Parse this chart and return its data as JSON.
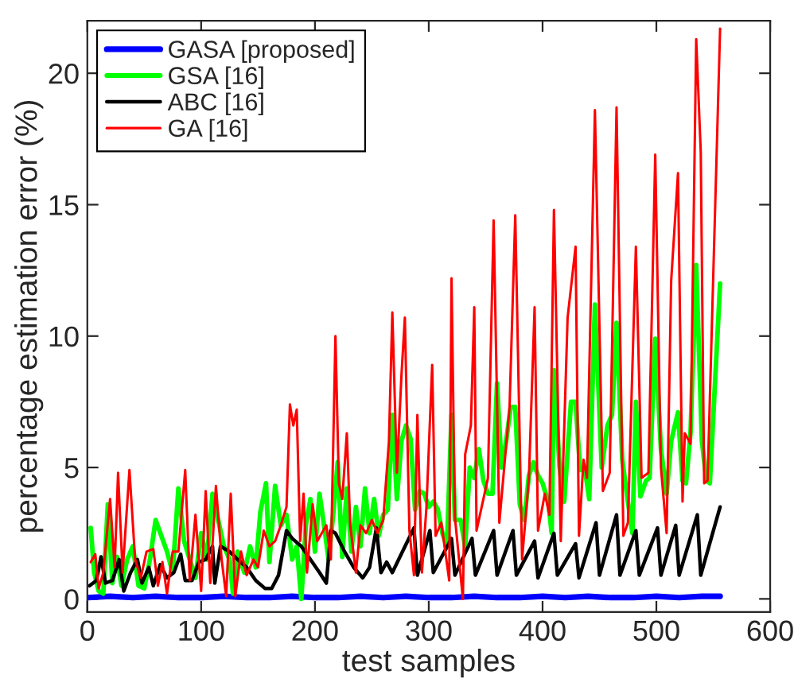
{
  "chart_data": {
    "type": "line",
    "xlabel": "test samples",
    "ylabel": "percentage estimation error (%)",
    "xlim": [
      0,
      600
    ],
    "xticks": [
      0,
      100,
      200,
      300,
      400,
      500,
      600
    ],
    "ylim": [
      -0.5,
      22
    ],
    "yticks": [
      0,
      5,
      10,
      15,
      20
    ],
    "grid": false,
    "legend": "top left",
    "marker": "none",
    "line_style": "solid",
    "series": [
      {
        "name": "GASA [proposed]",
        "color": "#0000ff",
        "x": [
          1,
          20,
          40,
          60,
          80,
          100,
          120,
          140,
          160,
          180,
          200,
          220,
          240,
          260,
          280,
          300,
          320,
          340,
          360,
          380,
          400,
          420,
          440,
          460,
          480,
          500,
          520,
          540,
          556
        ],
        "values": [
          0.05,
          0.1,
          0.05,
          0.1,
          0.05,
          0.05,
          0.1,
          0.05,
          0.05,
          0.1,
          0.05,
          0.05,
          0.1,
          0.05,
          0.1,
          0.05,
          0.05,
          0.1,
          0.05,
          0.05,
          0.1,
          0.05,
          0.1,
          0.05,
          0.05,
          0.1,
          0.05,
          0.1,
          0.1
        ]
      },
      {
        "name": "GSA [16]",
        "color": "#00ff00",
        "x": [
          3,
          6,
          10,
          14,
          18,
          22,
          26,
          30,
          35,
          40,
          45,
          50,
          55,
          60,
          65,
          70,
          75,
          80,
          85,
          90,
          95,
          100,
          105,
          110,
          115,
          120,
          125,
          128,
          132,
          138,
          143,
          148,
          152,
          157,
          160,
          165,
          170,
          175,
          180,
          184,
          188,
          192,
          196,
          200,
          204,
          208,
          212,
          216,
          220,
          224,
          228,
          232,
          236,
          240,
          244,
          248,
          252,
          256,
          260,
          264,
          268,
          272,
          276,
          280,
          284,
          288,
          292,
          296,
          300,
          304,
          308,
          312,
          316,
          320,
          323,
          328,
          332,
          336,
          340,
          344,
          348,
          352,
          356,
          360,
          364,
          368,
          372,
          376,
          380,
          384,
          388,
          392,
          396,
          400,
          405,
          408,
          410,
          415,
          419,
          425,
          429,
          433,
          437,
          441,
          446,
          452,
          457,
          461,
          465,
          470,
          475,
          479,
          482,
          486,
          491,
          494,
          499,
          504,
          509,
          513,
          519,
          523,
          526,
          530,
          535,
          540,
          544,
          547,
          556
        ],
        "values": [
          2.7,
          1.0,
          0.3,
          0.2,
          3.6,
          0.6,
          1.6,
          0.5,
          1.5,
          2.0,
          0.5,
          0.4,
          1.5,
          3.0,
          2.4,
          1.8,
          1.0,
          4.2,
          2.2,
          1.5,
          0.8,
          2.5,
          1.5,
          4.0,
          3.0,
          2.0,
          1.5,
          0.2,
          1.8,
          1.0,
          2.0,
          1.2,
          3.3,
          4.4,
          1.4,
          4.3,
          2.8,
          3.2,
          1.5,
          2.0,
          0.0,
          2.8,
          3.8,
          1.8,
          4.0,
          2.8,
          1.5,
          3.2,
          5.2,
          1.6,
          4.2,
          1.8,
          3.5,
          2.0,
          4.2,
          2.5,
          3.8,
          2.4,
          3.2,
          3.4,
          7.0,
          3.8,
          6.0,
          6.6,
          6.1,
          3.4,
          4.1,
          4.0,
          3.5,
          3.7,
          3.4,
          2.5,
          2.0,
          7.0,
          3.0,
          3.0,
          2.0,
          5.0,
          4.6,
          5.7,
          4.5,
          4.0,
          4.0,
          8.2,
          5.0,
          6.0,
          7.3,
          7.3,
          3.6,
          3.0,
          4.7,
          5.2,
          4.7,
          4.4,
          3.7,
          2.5,
          8.7,
          5.0,
          3.7,
          7.5,
          7.5,
          4.9,
          5.0,
          3.8,
          11.2,
          5.0,
          6.6,
          7.0,
          10.5,
          5.3,
          3.7,
          2.5,
          7.5,
          3.9,
          4.5,
          4.6,
          9.9,
          5.7,
          4.0,
          6.0,
          7.1,
          4.5,
          4.4,
          6.3,
          12.7,
          6.0,
          4.5,
          4.4,
          12.0
        ]
      },
      {
        "name": "ABC [16]",
        "color": "#000000",
        "x": [
          2,
          8,
          12,
          16,
          22,
          28,
          32,
          38,
          44,
          48,
          54,
          58,
          64,
          70,
          76,
          82,
          86,
          92,
          98,
          104,
          110,
          112,
          117,
          125,
          132,
          140,
          148,
          156,
          162,
          168,
          175,
          180,
          188,
          196,
          204,
          210,
          214,
          218,
          226,
          234,
          242,
          248,
          254,
          258,
          263,
          268,
          287,
          290,
          301,
          304,
          320,
          323,
          338,
          341,
          357,
          360,
          374,
          377,
          393,
          396,
          410,
          413,
          429,
          432,
          447,
          450,
          465,
          468,
          482,
          485,
          501,
          504,
          517,
          520,
          536,
          539,
          556
        ],
        "values": [
          0.5,
          0.7,
          1.6,
          0.6,
          0.7,
          1.5,
          0.3,
          1.0,
          1.5,
          0.6,
          1.2,
          0.5,
          1.3,
          0.8,
          1.0,
          1.7,
          0.7,
          0.7,
          1.4,
          1.5,
          2.0,
          0.6,
          2.0,
          1.8,
          1.5,
          1.2,
          0.7,
          0.4,
          0.4,
          0.9,
          2.6,
          2.3,
          2.0,
          1.5,
          1.0,
          0.6,
          2.6,
          2.5,
          1.8,
          1.2,
          0.8,
          1.2,
          2.7,
          1.0,
          1.4,
          1.0,
          2.7,
          0.9,
          2.6,
          1.0,
          2.3,
          0.9,
          2.3,
          0.9,
          2.6,
          0.9,
          2.6,
          0.9,
          2.2,
          0.8,
          2.5,
          0.9,
          2.1,
          0.8,
          2.9,
          0.9,
          3.2,
          0.9,
          2.6,
          0.9,
          2.7,
          0.9,
          2.8,
          0.9,
          3.2,
          0.9,
          3.5
        ]
      },
      {
        "name": "GA [16]",
        "color": "#ff0000",
        "x": [
          3,
          7,
          10,
          14,
          20,
          24,
          27,
          31,
          37,
          42,
          47,
          52,
          58,
          62,
          66,
          70,
          75,
          80,
          86,
          90,
          95,
          100,
          104,
          108,
          113,
          118,
          122,
          126,
          130,
          135,
          140,
          146,
          150,
          155,
          160,
          165,
          170,
          175,
          178,
          181,
          184,
          187,
          190,
          193,
          198,
          202,
          206,
          210,
          214,
          218,
          221,
          224,
          228,
          231,
          236,
          240,
          245,
          250,
          255,
          260,
          265,
          268,
          272,
          276,
          279,
          283,
          287,
          290,
          294,
          298,
          303,
          306,
          311,
          318,
          320,
          323,
          330,
          332,
          337,
          340,
          342,
          352,
          357,
          362,
          371,
          376,
          382,
          388,
          393,
          396,
          402,
          406,
          410,
          416,
          422,
          429,
          432,
          436,
          439,
          446,
          453,
          459,
          465,
          471,
          475,
          482,
          487,
          493,
          499,
          504,
          509,
          513,
          519,
          523,
          525,
          530,
          535,
          539,
          542,
          545,
          556
        ],
        "values": [
          1.4,
          1.7,
          0.4,
          1.0,
          3.8,
          1.2,
          4.8,
          1.0,
          4.9,
          1.5,
          0.8,
          1.8,
          1.9,
          0.5,
          1.4,
          0.2,
          1.8,
          1.8,
          4.9,
          0.7,
          3.2,
          0.3,
          4.1,
          0.6,
          4.3,
          1.5,
          0.1,
          4.0,
          0.1,
          1.8,
          0.9,
          1.5,
          1.2,
          2.6,
          2.0,
          2.2,
          2.8,
          3.5,
          7.4,
          6.6,
          7.2,
          2.2,
          4.0,
          1.0,
          3.6,
          2.2,
          2.5,
          2.8,
          1.5,
          10.0,
          4.4,
          3.8,
          6.3,
          2.8,
          1.0,
          2.8,
          2.5,
          3.0,
          2.5,
          3.0,
          6.0,
          10.9,
          4.8,
          8.5,
          10.7,
          2.6,
          0.9,
          7.0,
          1.0,
          3.5,
          8.9,
          2.4,
          2.9,
          0.7,
          12.2,
          3.1,
          0.0,
          5.5,
          6.6,
          11.1,
          2.6,
          4.6,
          14.4,
          2.9,
          7.3,
          14.6,
          1.5,
          4.6,
          11.1,
          2.6,
          4.0,
          3.2,
          14.8,
          2.2,
          10.7,
          13.4,
          2.4,
          5.3,
          4.6,
          18.6,
          4.1,
          4.8,
          18.7,
          2.4,
          2.9,
          13.4,
          4.6,
          4.8,
          16.9,
          5.0,
          2.5,
          12.1,
          16.2,
          3.7,
          6.3,
          5.9,
          21.3,
          17.0,
          4.4,
          4.5,
          21.7
        ]
      }
    ]
  }
}
